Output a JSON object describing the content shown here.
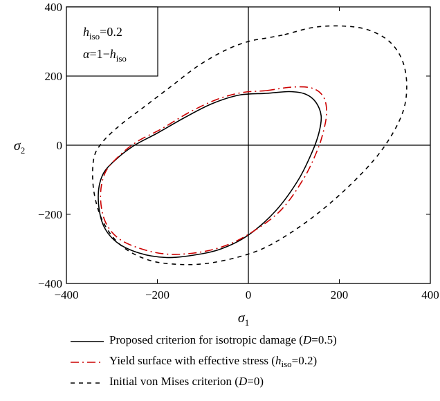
{
  "chart_data": {
    "type": "line",
    "title": "",
    "xlabel": "σ1",
    "ylabel": "σ2",
    "xlim": [
      -400,
      400
    ],
    "ylim": [
      -400,
      400
    ],
    "xticks": [
      "−400",
      "−200",
      "0",
      "200",
      "400"
    ],
    "yticks": [
      "400",
      "200",
      "0",
      "−200",
      "−400"
    ],
    "grid": false,
    "zero_lines": true,
    "annotation": {
      "line1": "hiso=0.2",
      "line2": "α=1−hiso"
    },
    "series": [
      {
        "name": "Proposed criterion for isotropic damage (D=0.5)",
        "color": "#000000",
        "style": "solid",
        "x": [
          40,
          90,
          125,
          148,
          160,
          155,
          140,
          110,
          60,
          0,
          -60,
          -120,
          -180,
          -240,
          -290,
          -320,
          -330,
          -320,
          -290,
          -250,
          -200,
          -140,
          -80,
          -20,
          40
        ],
        "y": [
          150,
          155,
          148,
          125,
          85,
          35,
          -20,
          -100,
          -190,
          -260,
          -300,
          -318,
          -325,
          -312,
          -280,
          -228,
          -150,
          -85,
          -40,
          0,
          35,
          80,
          120,
          145,
          150
        ]
      },
      {
        "name": "Yield surface with effective stress (hiso=0.2)",
        "color": "#cc0000",
        "style": "dashdot",
        "x": [
          40,
          95,
          140,
          165,
          172,
          165,
          150,
          120,
          70,
          0,
          -60,
          -120,
          -180,
          -235,
          -285,
          -315,
          -325,
          -315,
          -285,
          -245,
          -190,
          -130,
          -70,
          -15,
          40
        ],
        "y": [
          158,
          168,
          165,
          140,
          95,
          40,
          -20,
          -100,
          -190,
          -258,
          -295,
          -312,
          -315,
          -300,
          -270,
          -220,
          -148,
          -80,
          -32,
          10,
          48,
          95,
          132,
          152,
          158
        ]
      },
      {
        "name": "Initial von Mises criterion (D=0)",
        "color": "#000000",
        "style": "dashed",
        "x": [
          80,
          140,
          200,
          260,
          310,
          340,
          348,
          335,
          290,
          220,
          140,
          60,
          0,
          -80,
          -150,
          -220,
          -280,
          -320,
          -340,
          -340,
          -320,
          -280,
          -230,
          -170,
          -110,
          -50,
          0,
          40,
          80
        ],
        "y": [
          320,
          340,
          345,
          335,
          300,
          240,
          160,
          80,
          -20,
          -120,
          -210,
          -280,
          -315,
          -340,
          -345,
          -332,
          -290,
          -220,
          -130,
          -40,
          10,
          60,
          110,
          170,
          230,
          275,
          300,
          310,
          320
        ]
      }
    ]
  }
}
